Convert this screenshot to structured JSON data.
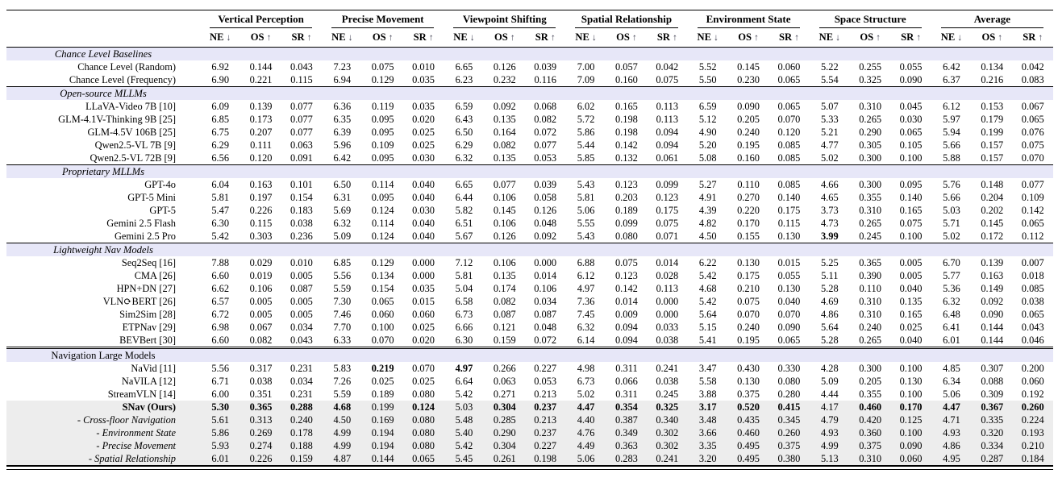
{
  "chart_data": {
    "type": "table",
    "colors": {
      "section_band": "#e7e7f8",
      "highlight_band": "#ededed",
      "rule": "#000000",
      "arrow": "#3c3c4e"
    },
    "column_groups": [
      "Vertical Perception",
      "Precise Movement",
      "Viewpoint Shifting",
      "Spatial Relationship",
      "Environment State",
      "Space Structure",
      "Average"
    ],
    "metrics": [
      {
        "label": "NE",
        "arrow": "↓",
        "arrow_name": "arrow-down-icon"
      },
      {
        "label": "OS",
        "arrow": "↑",
        "arrow_name": "arrow-up-icon"
      },
      {
        "label": "SR",
        "arrow": "↑",
        "arrow_name": "arrow-up-icon"
      }
    ],
    "sections": [
      {
        "header": "Chance Level Baselines",
        "header_italic": true,
        "rows": [
          {
            "label": "Chance Level (Random)",
            "values": [
              "6.92",
              "0.144",
              "0.043",
              "7.23",
              "0.075",
              "0.010",
              "6.65",
              "0.126",
              "0.039",
              "7.00",
              "0.057",
              "0.042",
              "5.52",
              "0.145",
              "0.060",
              "5.22",
              "0.255",
              "0.055",
              "6.42",
              "0.134",
              "0.042"
            ]
          },
          {
            "label": "Chance Level (Frequency)",
            "values": [
              "6.90",
              "0.221",
              "0.115",
              "6.94",
              "0.129",
              "0.035",
              "6.23",
              "0.232",
              "0.116",
              "7.09",
              "0.160",
              "0.075",
              "5.50",
              "0.230",
              "0.065",
              "5.54",
              "0.325",
              "0.090",
              "6.37",
              "0.216",
              "0.083"
            ]
          }
        ]
      },
      {
        "header": "Open-source MLLMs",
        "header_italic": true,
        "rows": [
          {
            "label": "LLaVA-Video 7B [10]",
            "values": [
              "6.09",
              "0.139",
              "0.077",
              "6.36",
              "0.119",
              "0.035",
              "6.59",
              "0.092",
              "0.068",
              "6.02",
              "0.165",
              "0.113",
              "6.59",
              "0.090",
              "0.065",
              "5.07",
              "0.310",
              "0.045",
              "6.12",
              "0.153",
              "0.067"
            ]
          },
          {
            "label": "GLM-4.1V-Thinking 9B [25]",
            "values": [
              "6.85",
              "0.173",
              "0.077",
              "6.35",
              "0.095",
              "0.020",
              "6.43",
              "0.135",
              "0.082",
              "5.72",
              "0.198",
              "0.113",
              "5.12",
              "0.205",
              "0.070",
              "5.33",
              "0.265",
              "0.030",
              "5.97",
              "0.179",
              "0.065"
            ]
          },
          {
            "label": "GLM-4.5V 106B [25]",
            "values": [
              "6.75",
              "0.207",
              "0.077",
              "6.39",
              "0.095",
              "0.025",
              "6.50",
              "0.164",
              "0.072",
              "5.86",
              "0.198",
              "0.094",
              "4.90",
              "0.240",
              "0.120",
              "5.21",
              "0.290",
              "0.065",
              "5.94",
              "0.199",
              "0.076"
            ]
          },
          {
            "label": "Qwen2.5-VL 7B [9]",
            "values": [
              "6.29",
              "0.111",
              "0.063",
              "5.96",
              "0.109",
              "0.025",
              "6.29",
              "0.082",
              "0.077",
              "5.44",
              "0.142",
              "0.094",
              "5.20",
              "0.195",
              "0.085",
              "4.77",
              "0.305",
              "0.105",
              "5.66",
              "0.157",
              "0.075"
            ]
          },
          {
            "label": "Qwen2.5-VL 72B [9]",
            "values": [
              "6.56",
              "0.120",
              "0.091",
              "6.42",
              "0.095",
              "0.030",
              "6.32",
              "0.135",
              "0.053",
              "5.85",
              "0.132",
              "0.061",
              "5.08",
              "0.160",
              "0.085",
              "5.02",
              "0.300",
              "0.100",
              "5.88",
              "0.157",
              "0.070"
            ]
          }
        ]
      },
      {
        "header": "Proprietary MLLMs",
        "header_italic": true,
        "rows": [
          {
            "label": "GPT-4o",
            "values": [
              "6.04",
              "0.163",
              "0.101",
              "6.50",
              "0.114",
              "0.040",
              "6.65",
              "0.077",
              "0.039",
              "5.43",
              "0.123",
              "0.099",
              "5.27",
              "0.110",
              "0.085",
              "4.66",
              "0.300",
              "0.095",
              "5.76",
              "0.148",
              "0.077"
            ]
          },
          {
            "label": "GPT-5 Mini",
            "values": [
              "5.81",
              "0.197",
              "0.154",
              "6.31",
              "0.095",
              "0.040",
              "6.44",
              "0.106",
              "0.058",
              "5.81",
              "0.203",
              "0.123",
              "4.91",
              "0.270",
              "0.140",
              "4.65",
              "0.355",
              "0.140",
              "5.66",
              "0.204",
              "0.109"
            ]
          },
          {
            "label": "GPT-5",
            "values": [
              "5.47",
              "0.226",
              "0.183",
              "5.69",
              "0.124",
              "0.030",
              "5.82",
              "0.145",
              "0.126",
              "5.06",
              "0.189",
              "0.175",
              "4.39",
              "0.220",
              "0.175",
              "3.73",
              "0.310",
              "0.165",
              "5.03",
              "0.202",
              "0.142"
            ]
          },
          {
            "label": "Gemini 2.5 Flash",
            "values": [
              "6.30",
              "0.115",
              "0.038",
              "6.32",
              "0.114",
              "0.040",
              "6.51",
              "0.106",
              "0.048",
              "5.55",
              "0.099",
              "0.075",
              "4.82",
              "0.170",
              "0.115",
              "4.73",
              "0.265",
              "0.075",
              "5.71",
              "0.145",
              "0.065"
            ]
          },
          {
            "label": "Gemini 2.5 Pro",
            "values": [
              "5.42",
              "0.303",
              "0.236",
              "5.09",
              "0.124",
              "0.040",
              "5.67",
              "0.126",
              "0.092",
              "5.43",
              "0.080",
              "0.071",
              "4.50",
              "0.155",
              "0.130",
              "3.99",
              "0.245",
              "0.100",
              "5.02",
              "0.172",
              "0.112"
            ],
            "bold_cells": [
              15
            ]
          }
        ]
      },
      {
        "header": "Lightweight Nav Models",
        "header_italic": true,
        "rows": [
          {
            "label": "Seq2Seq [16]",
            "values": [
              "7.88",
              "0.029",
              "0.010",
              "6.85",
              "0.129",
              "0.000",
              "7.12",
              "0.106",
              "0.000",
              "6.88",
              "0.075",
              "0.014",
              "6.22",
              "0.130",
              "0.015",
              "5.25",
              "0.365",
              "0.005",
              "6.70",
              "0.139",
              "0.007"
            ]
          },
          {
            "label": "CMA [26]",
            "values": [
              "6.60",
              "0.019",
              "0.005",
              "5.56",
              "0.134",
              "0.000",
              "5.81",
              "0.135",
              "0.014",
              "6.12",
              "0.123",
              "0.028",
              "5.42",
              "0.175",
              "0.055",
              "5.11",
              "0.390",
              "0.005",
              "5.77",
              "0.163",
              "0.018"
            ]
          },
          {
            "label": "HPN+DN [27]",
            "values": [
              "6.62",
              "0.106",
              "0.087",
              "5.59",
              "0.154",
              "0.035",
              "5.04",
              "0.174",
              "0.106",
              "4.97",
              "0.142",
              "0.113",
              "4.68",
              "0.210",
              "0.130",
              "5.28",
              "0.110",
              "0.040",
              "5.36",
              "0.149",
              "0.085"
            ]
          },
          {
            "label": "VLN⟳BERT [26]",
            "values": [
              "6.57",
              "0.005",
              "0.005",
              "7.30",
              "0.065",
              "0.015",
              "6.58",
              "0.082",
              "0.034",
              "7.36",
              "0.014",
              "0.000",
              "5.42",
              "0.075",
              "0.040",
              "4.69",
              "0.310",
              "0.135",
              "6.32",
              "0.092",
              "0.038"
            ]
          },
          {
            "label": "Sim2Sim [28]",
            "values": [
              "6.72",
              "0.005",
              "0.005",
              "7.46",
              "0.060",
              "0.060",
              "6.73",
              "0.087",
              "0.087",
              "7.45",
              "0.009",
              "0.000",
              "5.64",
              "0.070",
              "0.070",
              "4.86",
              "0.310",
              "0.165",
              "6.48",
              "0.090",
              "0.065"
            ]
          },
          {
            "label": "ETPNav [29]",
            "values": [
              "6.98",
              "0.067",
              "0.034",
              "7.70",
              "0.100",
              "0.025",
              "6.66",
              "0.121",
              "0.048",
              "6.32",
              "0.094",
              "0.033",
              "5.15",
              "0.240",
              "0.090",
              "5.64",
              "0.240",
              "0.025",
              "6.41",
              "0.144",
              "0.043"
            ]
          },
          {
            "label": "BEVBert [30]",
            "values": [
              "6.60",
              "0.082",
              "0.043",
              "6.33",
              "0.070",
              "0.020",
              "6.30",
              "0.159",
              "0.072",
              "6.14",
              "0.094",
              "0.038",
              "5.41",
              "0.195",
              "0.065",
              "5.28",
              "0.265",
              "0.040",
              "6.01",
              "0.144",
              "0.046"
            ]
          }
        ]
      },
      {
        "header": "Navigation Large Models",
        "header_italic": false,
        "double_rule": true,
        "rows": [
          {
            "label": "NaVid [11]",
            "values": [
              "5.56",
              "0.317",
              "0.231",
              "5.83",
              "0.219",
              "0.070",
              "4.97",
              "0.266",
              "0.227",
              "4.98",
              "0.311",
              "0.241",
              "3.47",
              "0.430",
              "0.330",
              "4.28",
              "0.300",
              "0.100",
              "4.85",
              "0.307",
              "0.200"
            ],
            "bold_cells": [
              4,
              6
            ]
          },
          {
            "label": "NaVILA [12]",
            "values": [
              "6.71",
              "0.038",
              "0.034",
              "7.26",
              "0.025",
              "0.025",
              "6.64",
              "0.063",
              "0.053",
              "6.73",
              "0.066",
              "0.038",
              "5.58",
              "0.130",
              "0.080",
              "5.09",
              "0.205",
              "0.130",
              "6.34",
              "0.088",
              "0.060"
            ]
          },
          {
            "label": "StreamVLN [14]",
            "values": [
              "6.00",
              "0.351",
              "0.231",
              "5.59",
              "0.189",
              "0.080",
              "5.42",
              "0.271",
              "0.213",
              "5.02",
              "0.311",
              "0.245",
              "3.88",
              "0.375",
              "0.280",
              "4.44",
              "0.355",
              "0.100",
              "5.06",
              "0.309",
              "0.192"
            ]
          },
          {
            "label": "SNav (Ours)",
            "label_bold": true,
            "bg": "gray",
            "values": [
              "5.30",
              "0.365",
              "0.288",
              "4.68",
              "0.199",
              "0.124",
              "5.03",
              "0.304",
              "0.237",
              "4.47",
              "0.354",
              "0.325",
              "3.17",
              "0.520",
              "0.415",
              "4.17",
              "0.460",
              "0.170",
              "4.47",
              "0.367",
              "0.260"
            ],
            "bold_cells": [
              0,
              1,
              2,
              3,
              5,
              7,
              8,
              9,
              10,
              11,
              12,
              13,
              14,
              16,
              17,
              18,
              19,
              20
            ]
          },
          {
            "label": "- Cross-floor Navigation",
            "label_italic": true,
            "bg": "gray",
            "values": [
              "5.61",
              "0.313",
              "0.240",
              "4.50",
              "0.169",
              "0.080",
              "5.48",
              "0.285",
              "0.213",
              "4.40",
              "0.387",
              "0.340",
              "3.48",
              "0.435",
              "0.345",
              "4.79",
              "0.420",
              "0.125",
              "4.71",
              "0.335",
              "0.224"
            ]
          },
          {
            "label": "- Environment State",
            "label_italic": true,
            "bg": "gray",
            "values": [
              "5.86",
              "0.269",
              "0.178",
              "4.99",
              "0.194",
              "0.080",
              "5.40",
              "0.290",
              "0.237",
              "4.76",
              "0.349",
              "0.302",
              "3.66",
              "0.460",
              "0.260",
              "4.93",
              "0.360",
              "0.100",
              "4.93",
              "0.320",
              "0.193"
            ]
          },
          {
            "label": "- Precise Movement",
            "label_italic": true,
            "bg": "gray",
            "values": [
              "5.93",
              "0.274",
              "0.188",
              "4.99",
              "0.194",
              "0.080",
              "5.42",
              "0.304",
              "0.227",
              "4.49",
              "0.363",
              "0.302",
              "3.35",
              "0.495",
              "0.375",
              "4.99",
              "0.375",
              "0.090",
              "4.86",
              "0.334",
              "0.210"
            ]
          },
          {
            "label": "- Spatial Relationship",
            "label_italic": true,
            "bg": "gray",
            "values": [
              "6.01",
              "0.226",
              "0.159",
              "4.87",
              "0.144",
              "0.065",
              "5.45",
              "0.261",
              "0.198",
              "5.06",
              "0.283",
              "0.241",
              "3.20",
              "0.495",
              "0.380",
              "5.13",
              "0.310",
              "0.060",
              "4.95",
              "0.287",
              "0.184"
            ]
          }
        ]
      }
    ]
  }
}
